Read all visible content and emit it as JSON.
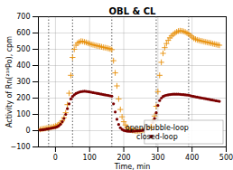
{
  "chart_data": {
    "type": "scatter",
    "title": "OBL & CL",
    "xlabel": "Time, min",
    "ylabel": "Activity of Rn(²¹⁸Po), cpm",
    "xlim": [
      -50,
      500
    ],
    "ylim": [
      -100,
      700
    ],
    "xticks": [
      0,
      100,
      200,
      300,
      400,
      500
    ],
    "yticks": [
      -100,
      0,
      100,
      200,
      300,
      400,
      500,
      600,
      700
    ],
    "grid": true,
    "legend": "lower right",
    "vlines": [
      -20,
      50,
      165,
      295,
      390
    ],
    "x": [
      -45,
      -40,
      -35,
      -30,
      -25,
      -20,
      -15,
      -10,
      -5,
      0,
      5,
      10,
      15,
      20,
      25,
      30,
      35,
      40,
      45,
      50,
      55,
      60,
      65,
      70,
      75,
      80,
      85,
      90,
      95,
      100,
      105,
      110,
      115,
      120,
      125,
      130,
      135,
      140,
      145,
      150,
      155,
      160,
      165,
      170,
      175,
      180,
      185,
      190,
      195,
      200,
      205,
      210,
      215,
      220,
      225,
      230,
      235,
      240,
      245,
      250,
      255,
      260,
      265,
      270,
      275,
      280,
      285,
      290,
      295,
      300,
      305,
      310,
      315,
      320,
      325,
      330,
      335,
      340,
      345,
      350,
      355,
      360,
      365,
      370,
      375,
      380,
      385,
      390,
      395,
      400,
      405,
      410,
      415,
      420,
      425,
      430,
      435,
      440,
      445,
      450,
      455,
      460,
      465,
      470,
      475,
      480
    ],
    "series": [
      {
        "name": "open/bubble-loop",
        "color": "#e8900a",
        "marker": "plus",
        "values": [
          8,
          10,
          12,
          14,
          16,
          18,
          20,
          22,
          25,
          28,
          32,
          38,
          48,
          60,
          80,
          110,
          160,
          230,
          340,
          450,
          500,
          525,
          538,
          545,
          550,
          548,
          545,
          542,
          538,
          535,
          530,
          528,
          525,
          522,
          520,
          518,
          515,
          512,
          510,
          508,
          505,
          502,
          498,
          430,
          355,
          275,
          195,
          130,
          85,
          55,
          35,
          20,
          10,
          5,
          2,
          0,
          -2,
          -2,
          -1,
          0,
          2,
          4,
          8,
          14,
          22,
          35,
          55,
          90,
          150,
          240,
          340,
          420,
          475,
          510,
          535,
          555,
          570,
          582,
          592,
          600,
          607,
          612,
          614,
          613,
          610,
          606,
          600,
          594,
          585,
          575,
          568,
          562,
          558,
          555,
          552,
          550,
          547,
          545,
          542,
          540,
          538,
          535,
          532,
          530,
          527,
          525
        ]
      },
      {
        "name": "closed-loop",
        "color": "#7b0000",
        "marker": "circle",
        "values": [
          4,
          5,
          6,
          8,
          10,
          12,
          14,
          16,
          18,
          20,
          24,
          30,
          40,
          55,
          75,
          100,
          135,
          165,
          195,
          210,
          220,
          228,
          233,
          237,
          240,
          241,
          242,
          241,
          240,
          238,
          236,
          234,
          232,
          230,
          228,
          226,
          224,
          222,
          220,
          218,
          216,
          214,
          212,
          165,
          115,
          70,
          38,
          18,
          8,
          2,
          -1,
          -3,
          -4,
          -4,
          -4,
          -3,
          -2,
          -2,
          -1,
          0,
          2,
          4,
          7,
          12,
          20,
          32,
          50,
          75,
          110,
          155,
          185,
          200,
          210,
          215,
          218,
          220,
          222,
          223,
          224,
          224,
          224,
          224,
          223,
          222,
          221,
          220,
          219,
          218,
          215,
          212,
          210,
          208,
          206,
          204,
          202,
          200,
          198,
          196,
          194,
          192,
          190,
          188,
          186,
          184,
          182,
          180
        ]
      }
    ]
  }
}
